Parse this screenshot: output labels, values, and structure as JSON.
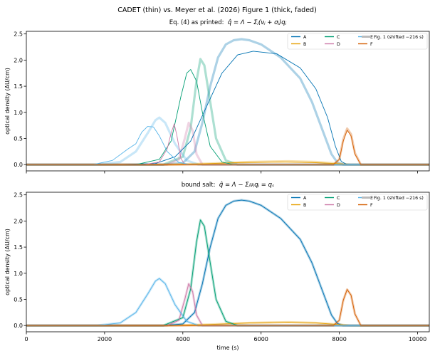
{
  "figure": {
    "suptitle": "CADET (thin) vs. Meyer et al. (2026) Figure 1 (thick, faded)"
  },
  "colors": {
    "A": "#0072b2",
    "B": "#e69f00",
    "C": "#009e73",
    "D": "#cc79a7",
    "E": "#56b4e9",
    "F": "#d55e00",
    "fig1_legend": "#bbbbbb"
  },
  "legend_labels": [
    "A",
    "B",
    "C",
    "D",
    "E",
    "F",
    "Fig. 1 (shifted −216 s)"
  ],
  "chart_data": [
    {
      "type": "line",
      "title_prefix": "Eq. (4) as printed:",
      "title_formula": "q̂ = Λ − Σⱼ(νⱼ + σⱼ)qⱼ",
      "xlabel": "",
      "ylabel": "optical density (AU/cm)",
      "xlim": [
        0,
        10300
      ],
      "ylim": [
        -0.12,
        2.55
      ],
      "yticks": [
        0.0,
        0.5,
        1.0,
        1.5,
        2.0,
        2.5
      ],
      "xticks": [
        0,
        2000,
        4000,
        6000,
        8000,
        10000
      ],
      "show_x_ticklabels": false,
      "grid": false,
      "legend_placement": "top-right",
      "thin_series": [
        {
          "name": "A",
          "x": [
            0,
            2300,
            3300,
            3800,
            4200,
            4600,
            5000,
            5400,
            5800,
            6400,
            7000,
            7400,
            7700,
            7900,
            8050,
            8200,
            10300
          ],
          "y": [
            0,
            0,
            0.02,
            0.15,
            0.45,
            1.1,
            1.75,
            2.1,
            2.17,
            2.12,
            1.85,
            1.45,
            0.9,
            0.35,
            0.06,
            0,
            0
          ]
        },
        {
          "name": "B",
          "x": [
            0,
            3500,
            4500,
            5500,
            6500,
            7300,
            7900,
            8300,
            10300
          ],
          "y": [
            0,
            0,
            0.015,
            0.04,
            0.05,
            0.04,
            0.02,
            0,
            0
          ]
        },
        {
          "name": "C",
          "x": [
            0,
            2800,
            3400,
            3700,
            3950,
            4100,
            4200,
            4350,
            4500,
            4700,
            5000,
            5300,
            10300
          ],
          "y": [
            0,
            0,
            0.1,
            0.45,
            1.3,
            1.75,
            1.82,
            1.6,
            1.0,
            0.35,
            0.05,
            0,
            0
          ]
        },
        {
          "name": "D",
          "x": [
            0,
            3000,
            3400,
            3600,
            3700,
            3780,
            3850,
            3950,
            4050,
            10300
          ],
          "y": [
            0,
            0,
            0.05,
            0.3,
            0.6,
            0.78,
            0.55,
            0.12,
            0,
            0
          ]
        },
        {
          "name": "E",
          "x": [
            0,
            1700,
            2200,
            2600,
            2800,
            2950,
            3100,
            3250,
            3400,
            3600,
            3900,
            4200,
            10300
          ],
          "y": [
            0,
            0,
            0.08,
            0.3,
            0.4,
            0.62,
            0.73,
            0.72,
            0.55,
            0.25,
            0.04,
            0,
            0
          ]
        },
        {
          "name": "F",
          "x": [
            0,
            7850,
            8000,
            8100,
            8200,
            8300,
            8400,
            8550,
            10300
          ],
          "y": [
            0,
            0,
            0.1,
            0.45,
            0.66,
            0.55,
            0.2,
            0,
            0
          ]
        }
      ],
      "faded_series": [
        {
          "name": "A",
          "x": [
            0,
            3500,
            4000,
            4300,
            4500,
            4700,
            4900,
            5100,
            5300,
            5500,
            5700,
            6000,
            6500,
            7000,
            7300,
            7600,
            7800,
            7950,
            8100,
            10300
          ],
          "y": [
            0,
            0,
            0.03,
            0.25,
            0.8,
            1.5,
            2.05,
            2.3,
            2.38,
            2.4,
            2.38,
            2.3,
            2.05,
            1.65,
            1.2,
            0.6,
            0.2,
            0.04,
            0,
            0
          ]
        },
        {
          "name": "B",
          "x": [
            0,
            3700,
            4700,
            5700,
            6700,
            7400,
            7950,
            8300,
            10300
          ],
          "y": [
            0,
            0,
            0.02,
            0.05,
            0.065,
            0.05,
            0.02,
            0,
            0
          ]
        },
        {
          "name": "C",
          "x": [
            0,
            3500,
            4000,
            4200,
            4350,
            4450,
            4550,
            4700,
            4850,
            5100,
            5400,
            10300
          ],
          "y": [
            0,
            0,
            0.15,
            0.7,
            1.6,
            2.02,
            1.9,
            1.2,
            0.5,
            0.08,
            0,
            0
          ]
        },
        {
          "name": "D",
          "x": [
            0,
            3600,
            3900,
            4050,
            4150,
            4250,
            4350,
            4500,
            10300
          ],
          "y": [
            0,
            0,
            0.1,
            0.5,
            0.8,
            0.65,
            0.2,
            0,
            0
          ]
        },
        {
          "name": "E",
          "x": [
            0,
            1800,
            2400,
            2800,
            3100,
            3300,
            3400,
            3550,
            3800,
            4100,
            4400,
            10300
          ],
          "y": [
            0,
            0,
            0.05,
            0.25,
            0.6,
            0.85,
            0.9,
            0.8,
            0.4,
            0.08,
            0,
            0
          ]
        },
        {
          "name": "F",
          "x": [
            0,
            7850,
            8000,
            8100,
            8200,
            8300,
            8400,
            8550,
            10300
          ],
          "y": [
            0,
            0,
            0.1,
            0.48,
            0.69,
            0.58,
            0.22,
            0,
            0
          ]
        }
      ]
    },
    {
      "type": "line",
      "title_prefix": "bound salt:",
      "title_formula": "q̂ = Λ − Σⱼνⱼqⱼ = qₛ",
      "xlabel": "time (s)",
      "ylabel": "optical density (AU/cm)",
      "xlim": [
        0,
        10300
      ],
      "ylim": [
        -0.12,
        2.55
      ],
      "yticks": [
        0.0,
        0.5,
        1.0,
        1.5,
        2.0,
        2.5
      ],
      "xticks": [
        0,
        2000,
        4000,
        6000,
        8000,
        10000
      ],
      "show_x_ticklabels": true,
      "grid": false,
      "legend_placement": "top-right",
      "thin_series": [
        {
          "name": "A",
          "x": [
            0,
            3500,
            4000,
            4300,
            4500,
            4700,
            4900,
            5100,
            5300,
            5500,
            5700,
            6000,
            6500,
            7000,
            7300,
            7600,
            7800,
            7950,
            8100,
            10300
          ],
          "y": [
            0,
            0,
            0.03,
            0.25,
            0.8,
            1.5,
            2.05,
            2.3,
            2.38,
            2.4,
            2.38,
            2.3,
            2.05,
            1.65,
            1.2,
            0.6,
            0.2,
            0.04,
            0,
            0
          ]
        },
        {
          "name": "B",
          "x": [
            0,
            3700,
            4700,
            5700,
            6700,
            7400,
            7950,
            8300,
            10300
          ],
          "y": [
            0,
            0,
            0.02,
            0.05,
            0.065,
            0.05,
            0.02,
            0,
            0
          ]
        },
        {
          "name": "C",
          "x": [
            0,
            3500,
            4000,
            4200,
            4350,
            4450,
            4550,
            4700,
            4850,
            5100,
            5400,
            10300
          ],
          "y": [
            0,
            0,
            0.15,
            0.7,
            1.6,
            2.02,
            1.9,
            1.2,
            0.5,
            0.08,
            0,
            0
          ]
        },
        {
          "name": "D",
          "x": [
            0,
            3600,
            3900,
            4050,
            4150,
            4250,
            4350,
            4500,
            10300
          ],
          "y": [
            0,
            0,
            0.1,
            0.5,
            0.8,
            0.65,
            0.2,
            0,
            0
          ]
        },
        {
          "name": "E",
          "x": [
            0,
            1800,
            2400,
            2800,
            3100,
            3300,
            3400,
            3550,
            3800,
            4100,
            4400,
            10300
          ],
          "y": [
            0,
            0,
            0.05,
            0.25,
            0.6,
            0.85,
            0.9,
            0.8,
            0.4,
            0.08,
            0,
            0
          ]
        },
        {
          "name": "F",
          "x": [
            0,
            7850,
            8000,
            8100,
            8200,
            8300,
            8400,
            8550,
            10300
          ],
          "y": [
            0,
            0,
            0.1,
            0.48,
            0.69,
            0.58,
            0.22,
            0,
            0
          ]
        }
      ],
      "faded_series": [
        {
          "name": "A",
          "x": [
            0,
            3500,
            4000,
            4300,
            4500,
            4700,
            4900,
            5100,
            5300,
            5500,
            5700,
            6000,
            6500,
            7000,
            7300,
            7600,
            7800,
            7950,
            8100,
            10300
          ],
          "y": [
            0,
            0,
            0.03,
            0.25,
            0.8,
            1.5,
            2.05,
            2.3,
            2.38,
            2.4,
            2.38,
            2.3,
            2.05,
            1.65,
            1.2,
            0.6,
            0.2,
            0.04,
            0,
            0
          ]
        },
        {
          "name": "B",
          "x": [
            0,
            3700,
            4700,
            5700,
            6700,
            7400,
            7950,
            8300,
            10300
          ],
          "y": [
            0,
            0,
            0.02,
            0.05,
            0.065,
            0.05,
            0.02,
            0,
            0
          ]
        },
        {
          "name": "C",
          "x": [
            0,
            3500,
            4000,
            4200,
            4350,
            4450,
            4550,
            4700,
            4850,
            5100,
            5400,
            10300
          ],
          "y": [
            0,
            0,
            0.15,
            0.7,
            1.6,
            2.02,
            1.9,
            1.2,
            0.5,
            0.08,
            0,
            0
          ]
        },
        {
          "name": "D",
          "x": [
            0,
            3600,
            3900,
            4050,
            4150,
            4250,
            4350,
            4500,
            10300
          ],
          "y": [
            0,
            0,
            0.1,
            0.5,
            0.8,
            0.65,
            0.2,
            0,
            0
          ]
        },
        {
          "name": "E",
          "x": [
            0,
            1800,
            2400,
            2800,
            3100,
            3300,
            3400,
            3550,
            3800,
            4100,
            4400,
            10300
          ],
          "y": [
            0,
            0,
            0.05,
            0.25,
            0.6,
            0.85,
            0.9,
            0.8,
            0.4,
            0.08,
            0,
            0
          ]
        },
        {
          "name": "F",
          "x": [
            0,
            7850,
            8000,
            8100,
            8200,
            8300,
            8400,
            8550,
            10300
          ],
          "y": [
            0,
            0,
            0.1,
            0.48,
            0.69,
            0.58,
            0.22,
            0,
            0
          ]
        }
      ]
    }
  ]
}
